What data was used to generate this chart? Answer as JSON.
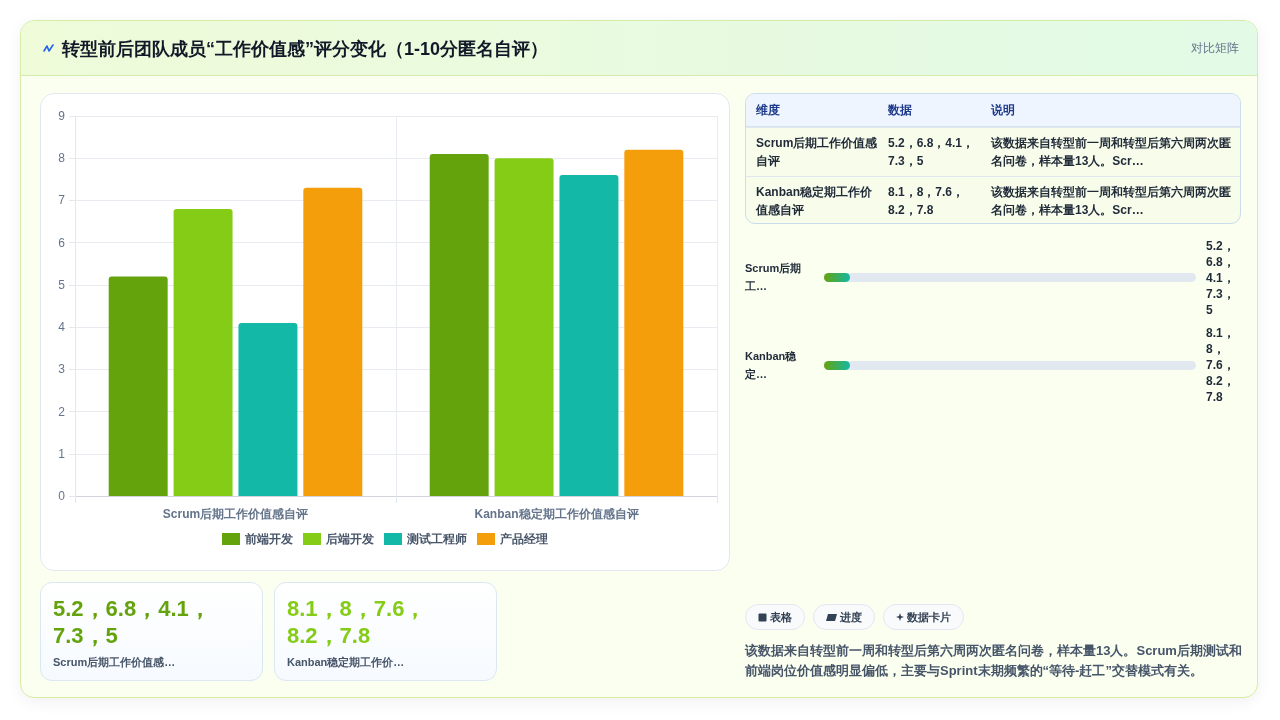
{
  "chart_data": [
    {
      "type": "bar",
      "title": "转型前后团队成员“工作价值感”评分变化（1-10分匿名自评）",
      "annotations": [
        "对比矩阵"
      ],
      "categories": [
        "Scrum后期工作价值感自评",
        "Kanban稳定期工作价值感自评"
      ],
      "series": [
        {
          "name": "前端开发",
          "color": "#65a30d",
          "values": [
            5.2,
            8.1
          ]
        },
        {
          "name": "后端开发",
          "color": "#84cc16",
          "values": [
            6.8,
            8
          ]
        },
        {
          "name": "测试工程师",
          "color": "#14b8a6",
          "values": [
            4.1,
            7.6
          ]
        },
        {
          "name": "产品经理",
          "color": "#f59e0b",
          "values": [
            7.3,
            8.2
          ]
        }
      ],
      "ylim": [
        0,
        9
      ],
      "yticks": [
        0,
        1,
        2,
        3,
        4,
        5,
        6,
        7,
        8,
        9
      ],
      "grid": true,
      "legend": "bottom"
    },
    {
      "type": "other",
      "annotations": [
        "维度",
        "数据",
        "说明",
        "Scrum后期工作价值感自评",
        "5.2，6.8，4.1，7.3，5",
        "该数据来自转型前一周和转型后第六周两次匿名问卷，样本量13人。Scr…",
        "Kanban稳定期工作价值感自评",
        "8.1，8，7.6，8.2，7.8",
        "该数据来自转型前一周和转型后第六周两次匿名问卷，样本量13人。Scr…"
      ]
    },
    {
      "type": "other",
      "annotations": [
        "Scrum后期工…",
        "5.2，6.8，4.1，7.3，5",
        "Kanban稳定…",
        "8.1，8，7.6，8.2，7.8"
      ]
    },
    {
      "type": "other",
      "annotations": [
        "5.2，6.8，4.1，7.3，5",
        "Scrum后期工作价值感…",
        "8.1，8，7.6，8.2，7.8",
        "Kanban稳定期工作价…"
      ],
      "colors": [
        "#65a30d",
        "#84cc16"
      ]
    },
    {
      "type": "other",
      "annotations": [
        "表格",
        "进度",
        "数据卡片",
        "该数据来自转型前一周和转型后第六周两次匿名问卷，样本量13人。Scrum后期测试和前端岗位价值感明显偏低，主要与Sprint末期频繁的“等待-赶工”交替模式有关。"
      ]
    }
  ]
}
